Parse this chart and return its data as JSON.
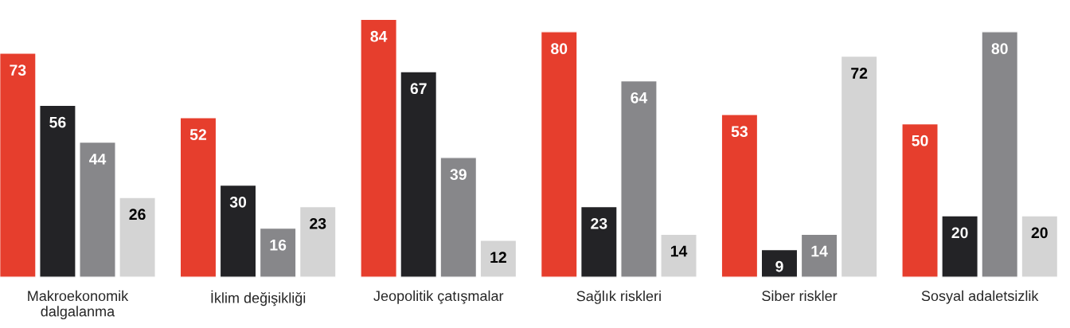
{
  "chart_data": {
    "type": "bar",
    "categories": [
      "Makroekonomik\ndalgalanma",
      "İklim değişikliği",
      "Jeopolitik çatışmalar",
      "Sağlık riskleri",
      "Siber riskler",
      "Sosyal adaletsizlik"
    ],
    "series": [
      {
        "color": "#e63e2d",
        "values": [
          73,
          52,
          84,
          80,
          53,
          50
        ]
      },
      {
        "color": "#232326",
        "values": [
          56,
          30,
          67,
          23,
          9,
          20
        ]
      },
      {
        "color": "#87878a",
        "values": [
          44,
          16,
          39,
          64,
          14,
          80
        ]
      },
      {
        "color": "#d4d4d4",
        "values": [
          26,
          23,
          12,
          14,
          72,
          20
        ]
      }
    ],
    "data_labels": true,
    "grid": false,
    "legend": false
  }
}
